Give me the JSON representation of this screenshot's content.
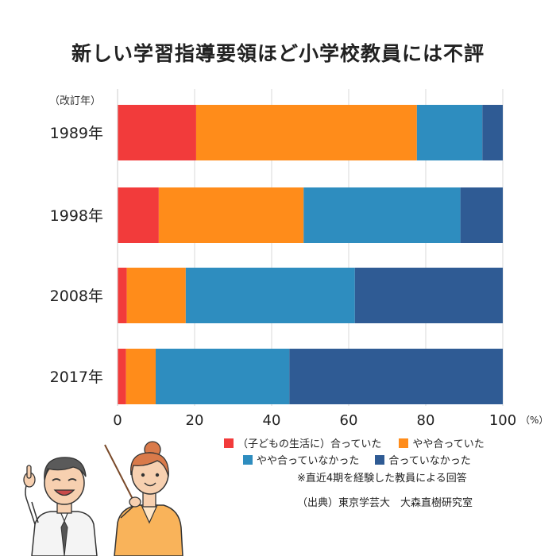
{
  "title": "新しい学習指導要領ほど小学校教員には不評",
  "year_axis_note": "（改訂年）",
  "legend": [
    {
      "label": "（子どもの生活に）合っていた",
      "color": "#f23b3b"
    },
    {
      "label": "やや合っていた",
      "color": "#ff8c1a"
    },
    {
      "label": "やや合っていなかった",
      "color": "#2e8dbf"
    },
    {
      "label": "合っていなかった",
      "color": "#2f5b94"
    }
  ],
  "note": "※直近4期を経験した教員による回答",
  "source": "（出典）東京学芸大　大森直樹研究室",
  "chart_data": {
    "type": "bar",
    "orientation": "horizontal",
    "stacked": true,
    "title": "新しい学習指導要領ほど小学校教員には不評",
    "categories": [
      "1989年",
      "1998年",
      "2008年",
      "2017年"
    ],
    "series": [
      {
        "name": "（子どもの生活に）合っていた",
        "color": "#f23b3b",
        "values": [
          20.4,
          10.7,
          2.4,
          2.2
        ]
      },
      {
        "name": "やや合っていた",
        "color": "#ff8c1a",
        "values": [
          57.3,
          37.6,
          15.3,
          7.7
        ]
      },
      {
        "name": "やや合っていなかった",
        "color": "#2e8dbf",
        "values": [
          17.0,
          40.7,
          43.9,
          34.7
        ]
      },
      {
        "name": "合っていなかった",
        "color": "#2f5b94",
        "values": [
          5.3,
          11.0,
          38.4,
          55.4
        ]
      }
    ],
    "x_ticks": [
      "0",
      "20",
      "40",
      "60",
      "80",
      "100"
    ],
    "x_unit": "（%）",
    "xlim": [
      0,
      100
    ],
    "grid": true,
    "legend_position": "bottom-right"
  }
}
